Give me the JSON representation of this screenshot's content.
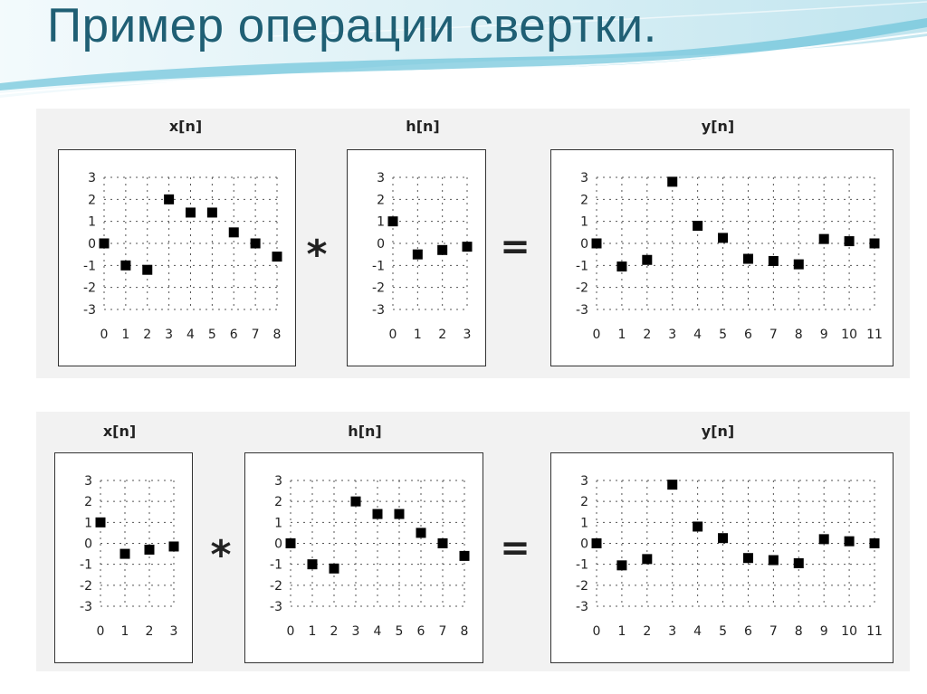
{
  "slide": {
    "title": "Пример операции свертки."
  },
  "operators": {
    "convolve": "*",
    "equals": "="
  },
  "colors": {
    "title": "#1f5f74",
    "banner_light": "#cfeaf2",
    "banner_mid": "#7fc7dd",
    "marker": "#000000"
  },
  "chart_data": [
    {
      "id": "r1-x",
      "type": "scatter",
      "title": "x[n]",
      "x": [
        0,
        1,
        2,
        3,
        4,
        5,
        6,
        7,
        8
      ],
      "y": [
        0,
        -1,
        -1.2,
        2,
        1.4,
        1.4,
        0.5,
        0,
        -0.6
      ],
      "ylim": [
        -3,
        3
      ],
      "yticks": [
        3,
        2,
        1,
        0,
        -1,
        -2,
        -3
      ],
      "xticks": [
        "0",
        "1",
        "2",
        "3",
        "4",
        "5",
        "6",
        "7",
        "8"
      ],
      "grid": true
    },
    {
      "id": "r1-h",
      "type": "scatter",
      "title": "h[n]",
      "x": [
        0,
        1,
        2,
        3
      ],
      "y": [
        1,
        -0.5,
        -0.3,
        -0.15
      ],
      "ylim": [
        -3,
        3
      ],
      "yticks": [
        3,
        2,
        1,
        0,
        -1,
        -2,
        -3
      ],
      "xticks": [
        "0",
        "1",
        "2",
        "3"
      ],
      "grid": true
    },
    {
      "id": "r1-y",
      "type": "scatter",
      "title": "y[n]",
      "x": [
        0,
        1,
        2,
        3,
        4,
        5,
        6,
        7,
        8,
        9,
        10,
        11
      ],
      "y": [
        0,
        -1.05,
        -0.75,
        2.8,
        0.8,
        0.25,
        -0.7,
        -0.8,
        -0.95,
        0.2,
        0.1,
        0.0
      ],
      "ylim": [
        -3,
        3
      ],
      "yticks": [
        3,
        2,
        1,
        0,
        -1,
        -2,
        -3
      ],
      "xticks": [
        "0",
        "1",
        "2",
        "3",
        "4",
        "5",
        "6",
        "7",
        "8",
        "9",
        "10",
        "11"
      ],
      "grid": true
    },
    {
      "id": "r2-x",
      "type": "scatter",
      "title": "x[n]",
      "x": [
        0,
        1,
        2,
        3
      ],
      "y": [
        1,
        -0.5,
        -0.3,
        -0.15
      ],
      "ylim": [
        -3,
        3
      ],
      "yticks": [
        3,
        2,
        1,
        0,
        -1,
        -2,
        -3
      ],
      "xticks": [
        "0",
        "1",
        "2",
        "3"
      ],
      "grid": true
    },
    {
      "id": "r2-h",
      "type": "scatter",
      "title": "h[n]",
      "x": [
        0,
        1,
        2,
        3,
        4,
        5,
        6,
        7,
        8
      ],
      "y": [
        0,
        -1,
        -1.2,
        2,
        1.4,
        1.4,
        0.5,
        0,
        -0.6
      ],
      "ylim": [
        -3,
        3
      ],
      "yticks": [
        3,
        2,
        1,
        0,
        -1,
        -2,
        -3
      ],
      "xticks": [
        "0",
        "1",
        "2",
        "3",
        "4",
        "5",
        "6",
        "7",
        "8"
      ],
      "grid": true
    },
    {
      "id": "r2-y",
      "type": "scatter",
      "title": "y[n]",
      "x": [
        0,
        1,
        2,
        3,
        4,
        5,
        6,
        7,
        8,
        9,
        10,
        11
      ],
      "y": [
        0,
        -1.05,
        -0.75,
        2.8,
        0.8,
        0.25,
        -0.7,
        -0.8,
        -0.95,
        0.2,
        0.1,
        0.0
      ],
      "ylim": [
        -3,
        3
      ],
      "yticks": [
        3,
        2,
        1,
        0,
        -1,
        -2,
        -3
      ],
      "xticks": [
        "0",
        "1",
        "2",
        "3",
        "4",
        "5",
        "6",
        "7",
        "8",
        "9",
        "10",
        "11"
      ],
      "grid": true
    }
  ]
}
